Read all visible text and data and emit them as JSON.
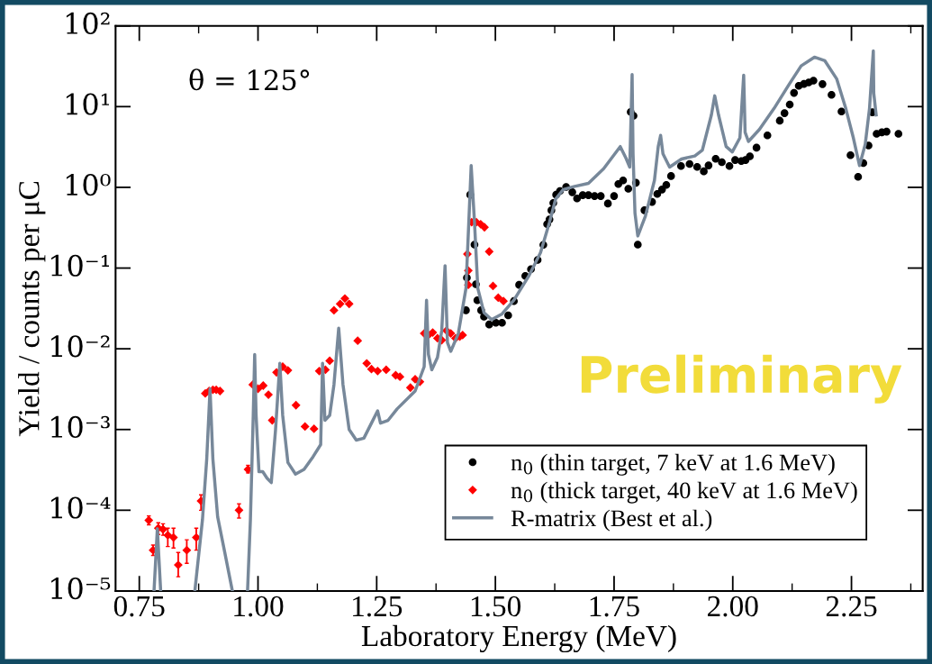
{
  "chart_data": {
    "type": "scatter",
    "xlabel": "Laboratory Energy (MeV)",
    "ylabel": "Yield / counts per μC",
    "annotations": [
      "θ = 125°",
      "Preliminary"
    ],
    "log": "y",
    "xlim": [
      0.7,
      2.4
    ],
    "ylim": [
      1e-05,
      100
    ],
    "xticks": [
      {
        "value": 0.75,
        "label": "0.75"
      },
      {
        "value": 1.0,
        "label": "1.00"
      },
      {
        "value": 1.25,
        "label": "1.25"
      },
      {
        "value": 1.5,
        "label": "1.50"
      },
      {
        "value": 1.75,
        "label": "1.75"
      },
      {
        "value": 2.0,
        "label": "2.00"
      },
      {
        "value": 2.25,
        "label": "2.25"
      }
    ],
    "yticks": [
      {
        "value": 1e-05,
        "label": "10⁻⁵"
      },
      {
        "value": 0.0001,
        "label": "10⁻⁴"
      },
      {
        "value": 0.001,
        "label": "10⁻³"
      },
      {
        "value": 0.01,
        "label": "10⁻²"
      },
      {
        "value": 0.1,
        "label": "10⁻¹"
      },
      {
        "value": 1,
        "label": "10⁰"
      },
      {
        "value": 10,
        "label": "10¹"
      },
      {
        "value": 100,
        "label": "10²"
      }
    ],
    "legend": "bottom right",
    "grid": false,
    "series": [
      {
        "name": "n$_{0}$ (thin target, 7 keV at 1.6 MeV)",
        "marker": "circle",
        "color": "#000000",
        "x": [
          1.438,
          1.44,
          1.447,
          1.456,
          1.459,
          1.462,
          1.47,
          1.476,
          1.487,
          1.501,
          1.514,
          1.527,
          1.539,
          1.55,
          1.563,
          1.575,
          1.589,
          1.601,
          1.609,
          1.614,
          1.618,
          1.622,
          1.628,
          1.636,
          1.649,
          1.662,
          1.672,
          1.684,
          1.696,
          1.709,
          1.722,
          1.737,
          1.75,
          1.759,
          1.769,
          1.78,
          1.785,
          1.791,
          1.796,
          1.8,
          1.814,
          1.83,
          1.841,
          1.851,
          1.86,
          1.87,
          1.891,
          1.909,
          1.925,
          1.939,
          1.949,
          1.964,
          1.977,
          1.993,
          2.005,
          2.018,
          2.027,
          2.036,
          2.05,
          2.073,
          2.099,
          2.109,
          2.12,
          2.129,
          2.139,
          2.15,
          2.16,
          2.17,
          2.189,
          2.208,
          2.229,
          2.248,
          2.264,
          2.275,
          2.286,
          2.294,
          2.303,
          2.314,
          2.324,
          2.349
        ],
        "values": [
          0.03,
          0.076,
          0.81,
          0.195,
          0.063,
          0.04,
          0.03,
          0.025,
          0.02,
          0.021,
          0.021,
          0.026,
          0.039,
          0.062,
          0.08,
          0.097,
          0.126,
          0.194,
          0.35,
          0.4,
          0.52,
          0.64,
          0.81,
          0.9,
          1.01,
          0.87,
          0.73,
          0.8,
          0.8,
          0.78,
          0.78,
          0.63,
          0.78,
          1.1,
          1.22,
          0.96,
          8.6,
          7.7,
          1.14,
          0.195,
          0.52,
          0.66,
          0.83,
          0.94,
          1.07,
          1.38,
          1.84,
          1.95,
          1.79,
          1.58,
          1.87,
          2.26,
          2.05,
          1.84,
          2.18,
          2.12,
          2.18,
          2.42,
          3.1,
          4.4,
          6.7,
          8.3,
          10.6,
          14.8,
          18.1,
          19.1,
          19.9,
          21.0,
          19.0,
          14.0,
          8.7,
          2.5,
          1.35,
          2.0,
          3.3,
          8.5,
          4.6,
          4.8,
          4.9,
          4.6
        ]
      },
      {
        "name": "n$_{0}$ (thick target, 40 keV at 1.6 MeV)",
        "marker": "diamond",
        "color": "#ff0000",
        "x": [
          0.77,
          0.779,
          0.79,
          0.8,
          0.81,
          0.822,
          0.832,
          0.85,
          0.87,
          0.88,
          0.889,
          0.897,
          0.905,
          0.912,
          0.92,
          0.96,
          0.979,
          0.989,
          1.0,
          1.011,
          1.022,
          1.03,
          1.039,
          1.052,
          1.063,
          1.08,
          1.099,
          1.118,
          1.129,
          1.142,
          1.151,
          1.16,
          1.173,
          1.183,
          1.192,
          1.21,
          1.229,
          1.239,
          1.252,
          1.27,
          1.29,
          1.299,
          1.321,
          1.331,
          1.341,
          1.35,
          1.359,
          1.368,
          1.378,
          1.387,
          1.397,
          1.406,
          1.416,
          1.425,
          1.431,
          1.441,
          1.443,
          1.443,
          1.45,
          1.46,
          1.469,
          1.477,
          1.487,
          1.495,
          1.506,
          1.517
        ],
        "values": [
          7.5e-05,
          3.2e-05,
          6e-05,
          5.8e-05,
          4.9e-05,
          4.6e-05,
          2.1e-05,
          3.2e-05,
          4.6e-05,
          0.00013,
          0.0028,
          0.003,
          0.0031,
          0.0031,
          0.003,
          0.0001,
          0.00032,
          0.0036,
          0.0032,
          0.0035,
          0.0027,
          0.0013,
          0.0051,
          0.006,
          0.0054,
          0.002,
          0.00109,
          0.00102,
          0.0053,
          0.0055,
          0.0071,
          0.03,
          0.036,
          0.042,
          0.036,
          0.0126,
          0.0066,
          0.0056,
          0.0053,
          0.0055,
          0.0047,
          0.0045,
          0.0033,
          0.0042,
          0.0039,
          0.0155,
          0.0148,
          0.0159,
          0.0135,
          0.0128,
          0.0168,
          0.0155,
          0.0135,
          0.0142,
          0.0148,
          0.149,
          0.093,
          0.062,
          0.37,
          0.37,
          0.35,
          0.32,
          0.16,
          0.06,
          0.043,
          0.039
        ],
        "errors": [
          [
            6.6e-05,
            8.5e-05
          ],
          [
            2.75e-05,
            3.7e-05
          ],
          [
            5e-05,
            7e-05
          ],
          [
            4.9e-05,
            6.8e-05
          ],
          [
            3.55e-05,
            6e-05
          ],
          [
            3.4e-05,
            6e-05
          ],
          [
            1.5e-05,
            3e-05
          ],
          [
            2.2e-05,
            4.3e-05
          ],
          [
            3.2e-05,
            6e-05
          ],
          [
            0.0001,
            0.000155
          ],
          null,
          null,
          null,
          null,
          null,
          [
            8e-05,
            0.00012
          ],
          [
            0.00029,
            0.00036
          ],
          null,
          null,
          null,
          null,
          null,
          null,
          null,
          null,
          null,
          null,
          null,
          null,
          null,
          null,
          null,
          null,
          null,
          null,
          null,
          null,
          null,
          null,
          null,
          null,
          null,
          null,
          null,
          null,
          null,
          null,
          null,
          null,
          null,
          null,
          null,
          null,
          null,
          null,
          null,
          null,
          null,
          null,
          null,
          null,
          null,
          null,
          null,
          null,
          null
        ]
      },
      {
        "name": "R-matrix (Best et al.)",
        "type": "line",
        "marker": "none",
        "line_style": "solid",
        "color": "#77889a",
        "x": [
          0.781,
          0.788,
          0.795,
          null,
          0.867,
          0.883,
          0.892,
          0.899,
          0.905,
          0.915,
          0.93,
          0.946,
          null,
          0.978,
          0.984,
          0.99,
          0.993,
          0.996,
          1.002,
          1.01,
          1.019,
          1.028,
          1.037,
          1.046,
          1.052,
          1.063,
          1.079,
          1.097,
          1.116,
          1.132,
          1.136,
          1.141,
          1.151,
          1.16,
          1.17,
          1.179,
          1.192,
          1.207,
          1.223,
          1.239,
          1.252,
          1.258,
          1.274,
          1.293,
          1.331,
          1.35,
          1.355,
          1.359,
          1.366,
          1.378,
          1.387,
          1.394,
          1.399,
          1.406,
          1.422,
          1.438,
          1.444,
          1.449,
          1.456,
          1.463,
          1.476,
          1.492,
          1.514,
          1.539,
          1.57,
          1.595,
          1.614,
          1.627,
          1.643,
          1.665,
          1.696,
          1.728,
          1.763,
          1.775,
          1.783,
          1.788,
          1.79,
          1.794,
          1.8,
          1.816,
          1.835,
          1.843,
          1.848,
          1.853,
          1.867,
          1.892,
          1.92,
          1.936,
          1.955,
          1.962,
          1.97,
          1.986,
          1.999,
          2.015,
          2.023,
          2.026,
          2.033,
          2.056,
          2.087,
          2.119,
          2.144,
          2.172,
          2.194,
          2.219,
          2.238,
          2.254,
          2.267,
          2.279,
          2.288,
          2.296,
          2.297,
          2.302
        ],
        "values": [
          1e-05,
          5.9e-05,
          1e-05,
          null,
          1e-05,
          7.6e-05,
          0.00043,
          0.0032,
          0.00043,
          8.3e-05,
          3e-05,
          1e-05,
          null,
          1e-05,
          7.6e-05,
          0.0015,
          0.0085,
          0.0015,
          0.0003,
          0.0003,
          0.00025,
          0.00022,
          0.001,
          0.0066,
          0.0015,
          0.00039,
          0.00028,
          0.00032,
          0.00046,
          0.00065,
          0.0066,
          0.0013,
          0.0015,
          0.0036,
          0.018,
          0.0036,
          0.001,
          0.00074,
          0.00078,
          0.0012,
          0.0017,
          0.0012,
          0.0013,
          0.0018,
          0.003,
          0.006,
          0.04,
          0.0085,
          0.0055,
          0.0078,
          0.0168,
          0.107,
          0.012,
          0.0093,
          0.0155,
          0.056,
          0.37,
          1.86,
          0.37,
          0.056,
          0.028,
          0.023,
          0.027,
          0.04,
          0.079,
          0.155,
          0.37,
          0.72,
          0.94,
          1.02,
          1.12,
          1.7,
          3.2,
          2.3,
          1.78,
          25,
          2.6,
          0.48,
          0.25,
          0.44,
          1.22,
          3.2,
          4.4,
          2.6,
          1.78,
          2.24,
          2.45,
          2.9,
          7.9,
          13.6,
          7.9,
          3.2,
          2.75,
          4.1,
          24.5,
          4.8,
          3.7,
          5.2,
          9.5,
          19,
          32,
          41,
          37,
          22,
          9.5,
          4.1,
          1.86,
          3.4,
          9.5,
          49,
          14.6,
          7.9
        ]
      }
    ]
  }
}
